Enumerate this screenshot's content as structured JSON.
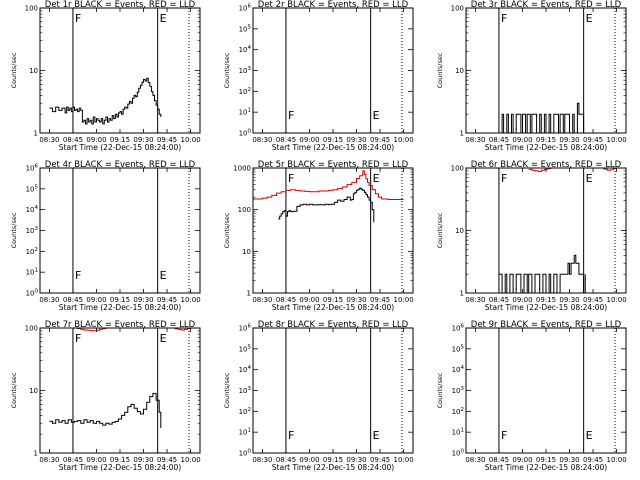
{
  "x_ticks": [
    "08:30",
    "08:45",
    "09:00",
    "09:15",
    "09:30",
    "09:45",
    "10:00"
  ],
  "xlabel": "Start Time (22-Dec-15 08:24:00)",
  "ylabel": "Counts/sec",
  "marker_start": "F",
  "marker_end": "E",
  "colors": {
    "events": "#000000",
    "lld": "#e00000"
  },
  "chart_data": [
    {
      "type": "line",
      "title": "Det 1r BLACK = Events, RED = LLD",
      "xlim": [
        -6,
        96
      ],
      "yscale": "log",
      "ylim": [
        1,
        100
      ],
      "y_ticks": [
        "1",
        "10",
        "100"
      ],
      "vlines": {
        "solid": [
          15,
          69
        ],
        "dotted": [
          89
        ]
      },
      "events": {
        "x": [
          0,
          2,
          4,
          6,
          8,
          10,
          11,
          12,
          13,
          14,
          15,
          16,
          17,
          18,
          19,
          20,
          21,
          22,
          23,
          24,
          25,
          26,
          27,
          28,
          29,
          30,
          31,
          32,
          33,
          34,
          35,
          36,
          37,
          38,
          39,
          40,
          41,
          42,
          43,
          44,
          45,
          46,
          47,
          48,
          49,
          50,
          51,
          52,
          53,
          54,
          55,
          56,
          57,
          58,
          59,
          60,
          61,
          62,
          63,
          64,
          65,
          66,
          67,
          68,
          69,
          70,
          71
        ],
        "y": [
          2.5,
          2.2,
          2.6,
          2.3,
          2.5,
          2.1,
          2.6,
          2.3,
          2.5,
          2.2,
          2.6,
          2.3,
          2.4,
          2.2,
          2.5,
          2.3,
          1.5,
          1.6,
          1.4,
          1.7,
          1.5,
          1.6,
          1.4,
          1.8,
          1.5,
          1.7,
          1.6,
          1.5,
          1.7,
          1.4,
          1.6,
          1.8,
          1.5,
          1.7,
          1.6,
          1.9,
          1.7,
          2.0,
          1.8,
          2.1,
          2.2,
          2.0,
          2.4,
          2.6,
          2.5,
          2.9,
          3.2,
          3.0,
          3.6,
          4.0,
          3.8,
          4.5,
          5.2,
          5.8,
          6.5,
          7.2,
          6.8,
          7.5,
          6.4,
          5.6,
          4.6,
          4.0,
          3.3,
          2.8,
          2.4,
          2.0,
          1.8
        ]
      },
      "lld": null
    },
    {
      "type": "line",
      "title": "Det 2r BLACK = Events, RED = LLD",
      "xlim": [
        -6,
        96
      ],
      "yscale": "log",
      "ylim": [
        1,
        1000000
      ],
      "y_ticks": [
        "10^0",
        "10^1",
        "10^2",
        "10^3",
        "10^4",
        "10^5",
        "10^6"
      ],
      "vlines": {
        "solid": [
          15,
          69
        ],
        "dotted": [
          89
        ]
      },
      "events": null,
      "lld": null
    },
    {
      "type": "line",
      "title": "Det 3r BLACK = Events, RED = LLD",
      "xlim": [
        -6,
        96
      ],
      "yscale": "log",
      "ylim": [
        1,
        100
      ],
      "y_ticks": [
        "1",
        "10",
        "100"
      ],
      "vlines": {
        "solid": [
          15,
          69
        ],
        "dotted": [
          89
        ]
      },
      "events": {
        "x": [
          15,
          17,
          18,
          20,
          21,
          23,
          24,
          26,
          27,
          29,
          30,
          32,
          33,
          35,
          36,
          38,
          39,
          41,
          42,
          44,
          45,
          47,
          48,
          50,
          51,
          53,
          54,
          56,
          57,
          59,
          60,
          62,
          63,
          65,
          66,
          68,
          69
        ],
        "y": [
          1,
          2,
          1,
          2,
          1,
          2,
          1,
          2,
          2,
          1,
          2,
          1,
          2,
          1,
          2,
          2,
          1,
          2,
          1,
          2,
          1,
          2,
          1,
          2,
          2,
          1,
          2,
          1,
          2,
          2,
          1,
          2,
          1,
          3,
          2,
          2,
          1
        ]
      },
      "lld": null
    },
    {
      "type": "line",
      "title": "Det 4r BLACK = Events, RED = LLD",
      "xlim": [
        -6,
        96
      ],
      "yscale": "log",
      "ylim": [
        1,
        1000000
      ],
      "y_ticks": [
        "10^0",
        "10^1",
        "10^2",
        "10^3",
        "10^4",
        "10^5",
        "10^6"
      ],
      "vlines": {
        "solid": [
          15,
          69
        ],
        "dotted": [
          89
        ]
      },
      "events": null,
      "lld": null
    },
    {
      "type": "line",
      "title": "Det 5r BLACK = Events, RED = LLD",
      "xlim": [
        -6,
        96
      ],
      "yscale": "log",
      "ylim": [
        1,
        1000
      ],
      "y_ticks": [
        "1",
        "10",
        "100",
        "1000"
      ],
      "vlines": {
        "solid": [
          15,
          69
        ],
        "dotted": [
          89
        ]
      },
      "events": {
        "x": [
          10,
          11,
          12,
          13,
          14,
          15,
          16,
          17,
          18,
          20,
          22,
          24,
          26,
          28,
          30,
          32,
          34,
          36,
          38,
          40,
          42,
          44,
          46,
          48,
          50,
          52,
          54,
          56,
          57,
          58,
          59,
          60,
          61,
          62,
          63,
          64,
          65,
          66,
          67,
          68,
          69,
          70,
          71
        ],
        "y": [
          60,
          70,
          80,
          90,
          95,
          70,
          90,
          95,
          90,
          92,
          120,
          130,
          135,
          130,
          135,
          130,
          130,
          132,
          130,
          135,
          132,
          135,
          150,
          170,
          160,
          175,
          200,
          170,
          175,
          240,
          260,
          290,
          310,
          330,
          310,
          290,
          260,
          230,
          200,
          170,
          150,
          100,
          50
        ]
      },
      "lld": {
        "x": [
          -6,
          -3,
          0,
          3,
          6,
          9,
          12,
          15,
          18,
          21,
          24,
          27,
          30,
          33,
          36,
          39,
          42,
          45,
          48,
          51,
          54,
          57,
          60,
          62,
          64,
          65,
          66,
          67,
          68,
          70,
          72,
          74,
          76,
          80,
          85,
          90
        ],
        "y": [
          180,
          180,
          190,
          200,
          220,
          250,
          270,
          290,
          300,
          290,
          280,
          275,
          270,
          270,
          280,
          280,
          290,
          300,
          320,
          350,
          400,
          450,
          560,
          650,
          850,
          700,
          550,
          450,
          380,
          300,
          240,
          200,
          180,
          175,
          175,
          175
        ]
      }
    },
    {
      "type": "line",
      "title": "Det 6r BLACK = Events, RED = LLD",
      "xlim": [
        -6,
        96
      ],
      "yscale": "log",
      "ylim": [
        1,
        100
      ],
      "y_ticks": [
        "1",
        "10",
        "100"
      ],
      "vlines": {
        "solid": [
          15,
          69
        ],
        "dotted": [
          89
        ]
      },
      "events": {
        "x": [
          15,
          17,
          19,
          20,
          22,
          24,
          26,
          27,
          29,
          31,
          33,
          34,
          36,
          38,
          40,
          41,
          43,
          45,
          47,
          48,
          50,
          52,
          54,
          55,
          57,
          59,
          60,
          61,
          62,
          63,
          64,
          65,
          66,
          67,
          68,
          69,
          70
        ],
        "y": [
          2,
          1,
          2,
          1,
          2,
          1,
          2,
          2,
          1,
          2,
          1,
          2,
          1,
          2,
          2,
          1,
          2,
          1,
          2,
          1,
          2,
          1,
          2,
          2,
          2,
          3,
          2,
          3,
          3,
          4,
          3,
          3,
          2,
          2,
          2,
          1,
          2
        ]
      },
      "lld": {
        "x": [
          34,
          36,
          38,
          40,
          42,
          44,
          46,
          48,
          50,
          80,
          82,
          84,
          86,
          88,
          90
        ],
        "y": [
          95,
          92,
          90,
          88,
          92,
          95,
          98,
          100,
          100,
          100,
          96,
          92,
          94,
          98,
          100
        ]
      }
    },
    {
      "type": "line",
      "title": "Det 7r BLACK = Events, RED = LLD",
      "xlim": [
        -6,
        96
      ],
      "yscale": "log",
      "ylim": [
        1,
        100
      ],
      "y_ticks": [
        "1",
        "10",
        "100"
      ],
      "vlines": {
        "solid": [
          15,
          69
        ],
        "dotted": [
          89
        ]
      },
      "events": {
        "x": [
          0,
          2,
          4,
          6,
          8,
          10,
          12,
          14,
          16,
          18,
          20,
          22,
          24,
          26,
          28,
          30,
          32,
          34,
          36,
          38,
          40,
          42,
          44,
          46,
          48,
          50,
          52,
          54,
          56,
          58,
          60,
          62,
          64,
          66,
          68,
          70,
          71
        ],
        "y": [
          3.2,
          3.0,
          3.4,
          3.1,
          3.3,
          3.0,
          3.4,
          3.1,
          3.2,
          3.3,
          3.0,
          3.4,
          3.1,
          3.3,
          3.0,
          3.2,
          3.0,
          2.8,
          3.0,
          2.9,
          3.1,
          3.2,
          3.5,
          4.0,
          4.5,
          5.5,
          6.0,
          5.2,
          4.6,
          4.2,
          5.0,
          6.5,
          8.0,
          9.0,
          7.0,
          4.5,
          2.5
        ]
      },
      "lld": {
        "x": [
          16,
          18,
          20,
          22,
          24,
          26,
          28,
          30,
          32,
          34,
          36,
          78,
          80,
          82,
          84,
          86,
          88,
          90
        ],
        "y": [
          100,
          98,
          95,
          93,
          92,
          91,
          90,
          92,
          95,
          98,
          100,
          100,
          97,
          95,
          93,
          95,
          98,
          100
        ]
      }
    },
    {
      "type": "line",
      "title": "Det 8r BLACK = Events, RED = LLD",
      "xlim": [
        -6,
        96
      ],
      "yscale": "log",
      "ylim": [
        1,
        1000000
      ],
      "y_ticks": [
        "10^0",
        "10^1",
        "10^2",
        "10^3",
        "10^4",
        "10^5",
        "10^6"
      ],
      "vlines": {
        "solid": [
          15,
          69
        ],
        "dotted": [
          89
        ]
      },
      "events": null,
      "lld": null
    },
    {
      "type": "line",
      "title": "Det 9r BLACK = Events, RED = LLD",
      "xlim": [
        -6,
        96
      ],
      "yscale": "log",
      "ylim": [
        1,
        1000000
      ],
      "y_ticks": [
        "10^0",
        "10^1",
        "10^2",
        "10^3",
        "10^4",
        "10^5",
        "10^6"
      ],
      "vlines": {
        "solid": [
          15,
          69
        ],
        "dotted": [
          89
        ]
      },
      "events": null,
      "lld": null
    }
  ]
}
